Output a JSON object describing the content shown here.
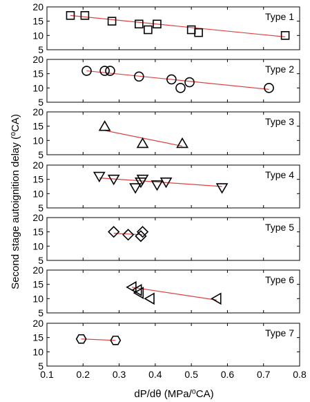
{
  "chart_data": {
    "type": "scatter",
    "xlabel": "dP/dθ (MPa/⁰CA)",
    "ylabel": "Second stage autoignition delay (⁰CA)",
    "xlim": [
      0.1,
      0.8
    ],
    "ylim": [
      5,
      20
    ],
    "x_ticks": [
      "0.1",
      "0.2",
      "0.3",
      "0.4",
      "0.5",
      "0.6",
      "0.7",
      "0.8"
    ],
    "y_ticks": [
      "5",
      "10",
      "15",
      "20"
    ],
    "marker_color": "#000000",
    "fit_line_color": "#e04040",
    "panels": [
      {
        "name": "Type 1",
        "marker": "square",
        "points": [
          [
            0.165,
            17
          ],
          [
            0.205,
            17
          ],
          [
            0.28,
            15
          ],
          [
            0.355,
            14
          ],
          [
            0.38,
            12
          ],
          [
            0.405,
            14
          ],
          [
            0.5,
            12
          ],
          [
            0.52,
            11
          ],
          [
            0.76,
            10
          ]
        ],
        "fit": [
          [
            0.165,
            17
          ],
          [
            0.76,
            9.5
          ]
        ]
      },
      {
        "name": "Type 2",
        "marker": "circle",
        "points": [
          [
            0.21,
            16
          ],
          [
            0.26,
            16
          ],
          [
            0.275,
            16
          ],
          [
            0.355,
            14
          ],
          [
            0.445,
            13
          ],
          [
            0.47,
            10
          ],
          [
            0.495,
            12
          ],
          [
            0.715,
            10
          ]
        ],
        "fit": [
          [
            0.21,
            16
          ],
          [
            0.715,
            9.5
          ]
        ]
      },
      {
        "name": "Type 3",
        "marker": "triangle-up",
        "points": [
          [
            0.26,
            15
          ],
          [
            0.365,
            9
          ],
          [
            0.475,
            9
          ]
        ],
        "fit": [
          [
            0.26,
            13.5
          ],
          [
            0.475,
            8
          ]
        ]
      },
      {
        "name": "Type 4",
        "marker": "triangle-down",
        "points": [
          [
            0.245,
            16
          ],
          [
            0.285,
            15
          ],
          [
            0.345,
            12
          ],
          [
            0.36,
            14
          ],
          [
            0.365,
            15
          ],
          [
            0.405,
            13
          ],
          [
            0.43,
            14
          ],
          [
            0.585,
            12
          ]
        ],
        "fit": [
          [
            0.245,
            15.5
          ],
          [
            0.585,
            12.5
          ]
        ]
      },
      {
        "name": "Type 5",
        "marker": "diamond",
        "points": [
          [
            0.285,
            15
          ],
          [
            0.325,
            14
          ],
          [
            0.36,
            13.5
          ],
          [
            0.365,
            15
          ]
        ],
        "fit": [
          [
            0.285,
            14.5
          ],
          [
            0.365,
            14
          ]
        ]
      },
      {
        "name": "Type 6",
        "marker": "triangle-left",
        "points": [
          [
            0.335,
            14
          ],
          [
            0.35,
            13
          ],
          [
            0.355,
            12
          ],
          [
            0.385,
            10
          ],
          [
            0.57,
            10
          ]
        ],
        "fit": [
          [
            0.335,
            14
          ],
          [
            0.57,
            9.5
          ]
        ]
      },
      {
        "name": "Type 7",
        "marker": "hexagon",
        "points": [
          [
            0.195,
            14.5
          ],
          [
            0.29,
            14
          ]
        ],
        "fit": [
          [
            0.195,
            14.5
          ],
          [
            0.29,
            14
          ]
        ]
      }
    ]
  }
}
